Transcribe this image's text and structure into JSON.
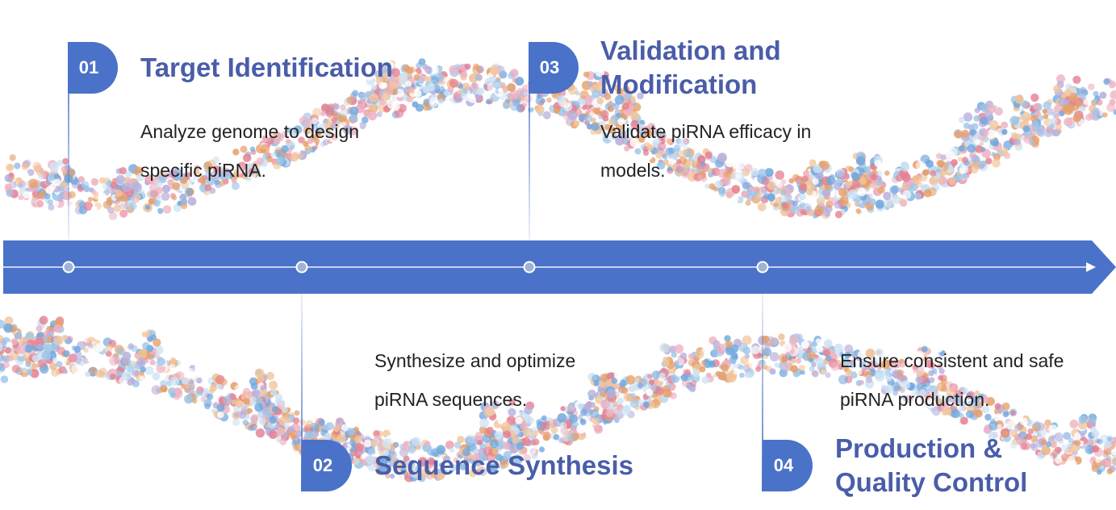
{
  "colors": {
    "accent": "#4a72c8",
    "title": "#4a5da8",
    "text": "#222222",
    "bead_palette": [
      "#e6a06a",
      "#f1c59c",
      "#cfe3f4",
      "#9fc6e8",
      "#6fa7de",
      "#eeb3c2",
      "#e57f92",
      "#ffffff",
      "#b7b0dc"
    ]
  },
  "timeline": {
    "arrow_icon": "arrow-right-icon",
    "node_icon": "circle-node-icon"
  },
  "steps": [
    {
      "number": "01",
      "title": "Target Identification",
      "desc_lines": [
        "Analyze genome to design",
        "specific piRNA."
      ]
    },
    {
      "number": "02",
      "title": "Sequence Synthesis",
      "desc_lines": [
        "Synthesize and optimize",
        "piRNA sequences."
      ]
    },
    {
      "number": "03",
      "title_lines": [
        "Validation and",
        "Modification"
      ],
      "desc_lines": [
        "Validate piRNA efficacy in",
        "models."
      ]
    },
    {
      "number": "04",
      "title_lines": [
        "Production &",
        "Quality Control"
      ],
      "desc_lines": [
        "Ensure consistent and safe",
        "piRNA production."
      ]
    }
  ]
}
